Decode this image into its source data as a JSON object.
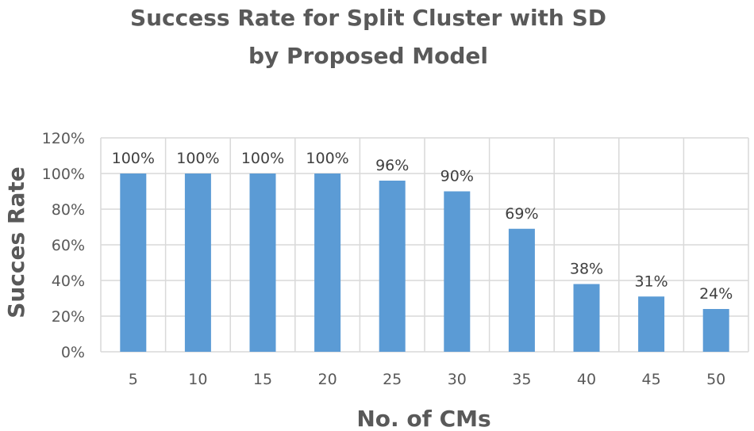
{
  "chart_data": {
    "type": "bar",
    "title_lines": [
      "Success Rate for Split  Cluster with SD",
      "by Proposed Model"
    ],
    "xlabel": "No. of CMs",
    "ylabel": "Succes Rate",
    "categories": [
      "5",
      "10",
      "15",
      "20",
      "25",
      "30",
      "35",
      "40",
      "45",
      "50"
    ],
    "values": [
      100,
      100,
      100,
      100,
      96,
      90,
      69,
      38,
      31,
      24
    ],
    "data_labels": [
      "100%",
      "100%",
      "100%",
      "100%",
      "96%",
      "90%",
      "69%",
      "38%",
      "31%",
      "24%"
    ],
    "yticks": [
      0,
      20,
      40,
      60,
      80,
      100,
      120
    ],
    "ytick_labels": [
      "0%",
      "20%",
      "40%",
      "60%",
      "80%",
      "100%",
      "120%"
    ],
    "ylim": [
      0,
      120
    ],
    "grid": true,
    "bar_color": "#5b9bd5",
    "grid_color": "#d9d9d9"
  }
}
